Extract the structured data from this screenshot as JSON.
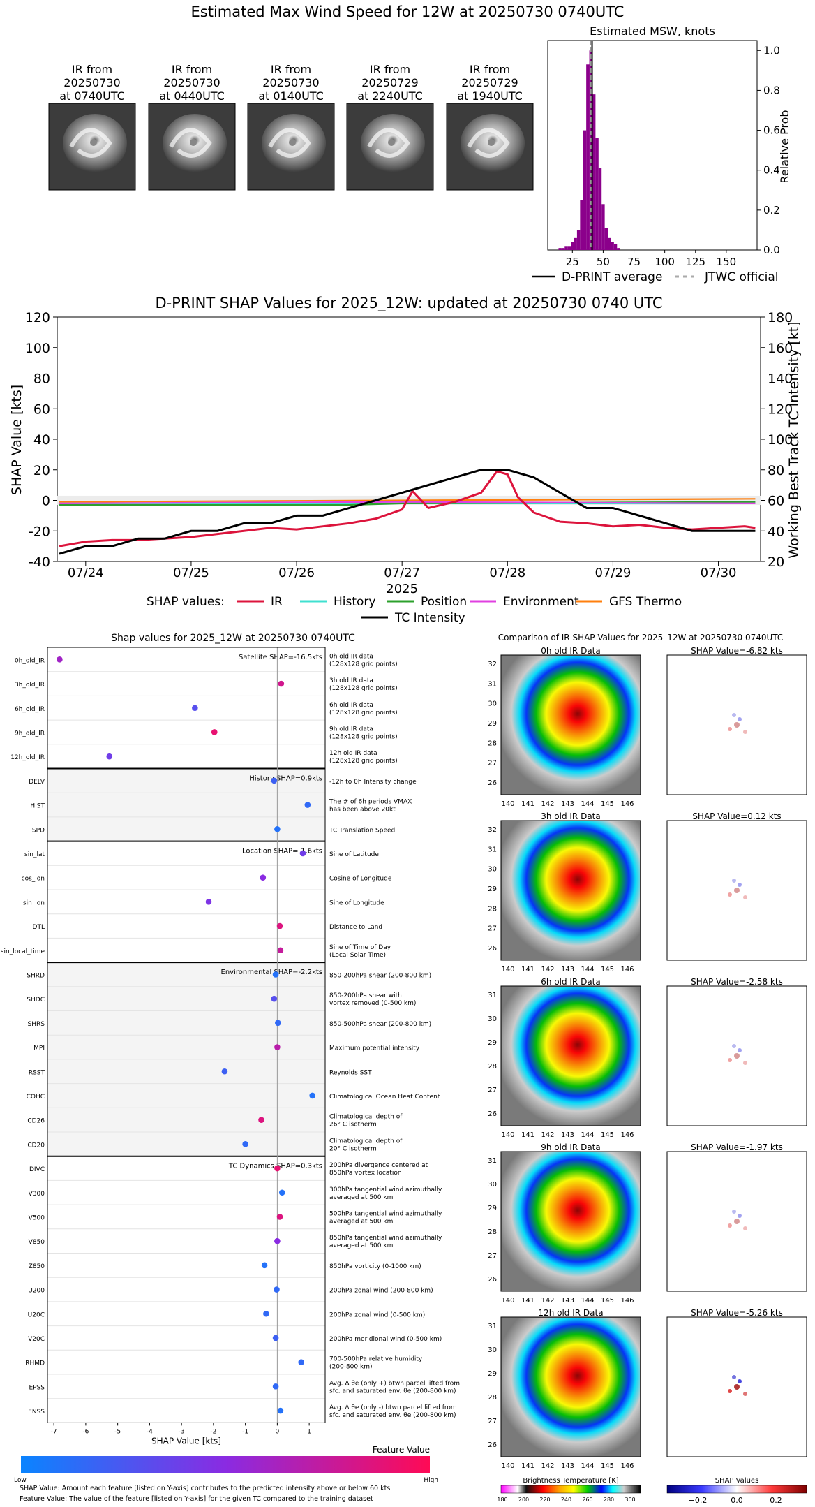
{
  "page_title": "Estimated Max Wind Speed for 12W at 20250730 0740UTC",
  "ir_thumbnails": [
    {
      "l1": "IR from",
      "l2": "20250730",
      "l3": "at 0740UTC"
    },
    {
      "l1": "IR from",
      "l2": "20250730",
      "l3": "at 0440UTC"
    },
    {
      "l1": "IR from",
      "l2": "20250730",
      "l3": "at 0140UTC"
    },
    {
      "l1": "IR from",
      "l2": "20250729",
      "l3": "at 2240UTC"
    },
    {
      "l1": "IR from",
      "l2": "20250729",
      "l3": "at 1940UTC"
    }
  ],
  "colors": {
    "ir": "#dc143c",
    "history": "#40e0d0",
    "position": "#2ca02c",
    "environment": "#e040e0",
    "gfs": "#ff7f0e",
    "intensity": "#000000",
    "histogram": "#8b008b",
    "shap_low": "#0a84ff",
    "shap_high": "#ff0a55"
  },
  "chart_data": [
    {
      "type": "bar",
      "title": "Estimated MSW, knots",
      "ylabel": "Relative Prob",
      "xlim": [
        5,
        175
      ],
      "ylim": [
        0,
        1.05
      ],
      "xticks": [
        "25",
        "50",
        "75",
        "100",
        "125",
        "150"
      ],
      "yticks": [
        "0.0",
        "0.2",
        "0.4",
        "0.6",
        "0.8",
        "1.0"
      ],
      "bin_width": 2.5,
      "bins": [
        {
          "x": 15,
          "v": 0.01
        },
        {
          "x": 17.5,
          "v": 0.01
        },
        {
          "x": 20,
          "v": 0.02
        },
        {
          "x": 22.5,
          "v": 0.02
        },
        {
          "x": 25,
          "v": 0.04
        },
        {
          "x": 27.5,
          "v": 0.06
        },
        {
          "x": 30,
          "v": 0.1
        },
        {
          "x": 32.5,
          "v": 0.25
        },
        {
          "x": 35,
          "v": 0.6
        },
        {
          "x": 37.5,
          "v": 0.93
        },
        {
          "x": 40,
          "v": 1.0
        },
        {
          "x": 42.5,
          "v": 0.78
        },
        {
          "x": 45,
          "v": 0.56
        },
        {
          "x": 47.5,
          "v": 0.41
        },
        {
          "x": 50,
          "v": 0.23
        },
        {
          "x": 52.5,
          "v": 0.11
        },
        {
          "x": 55,
          "v": 0.06
        },
        {
          "x": 57.5,
          "v": 0.04
        },
        {
          "x": 60,
          "v": 0.03
        },
        {
          "x": 62.5,
          "v": 0.01
        }
      ],
      "dprint_average": 41,
      "jtwc_official": 40,
      "legend": [
        {
          "label": "D-PRINT average"
        },
        {
          "label": "JTWC official"
        }
      ]
    },
    {
      "type": "line",
      "title": "D-PRINT SHAP Values for 2025_12W: updated at 20250730 0740 UTC",
      "xlabel": "2025",
      "ylabel": "SHAP Value [kts]",
      "ylabel_right": "Working Best Track TC Intensity [kt]",
      "xlim": [
        -0.27,
        6.4
      ],
      "ylim": [
        -40,
        120
      ],
      "ylim_right": [
        20,
        180
      ],
      "xticks": [
        "07/24",
        "07/25",
        "07/26",
        "07/27",
        "07/28",
        "07/29",
        "07/30"
      ],
      "yticks": [
        "-40",
        "-20",
        "0",
        "20",
        "40",
        "60",
        "80",
        "100",
        "120"
      ],
      "yticks_right": [
        "20",
        "40",
        "60",
        "80",
        "100",
        "120",
        "140",
        "160",
        "180"
      ],
      "legend_prefix": "SHAP values:",
      "series": [
        {
          "name": "IR",
          "values": [
            [
              -0.25,
              -30
            ],
            [
              0,
              -27
            ],
            [
              0.25,
              -26
            ],
            [
              0.5,
              -26
            ],
            [
              0.75,
              -25
            ],
            [
              1.0,
              -24
            ],
            [
              1.25,
              -22
            ],
            [
              1.5,
              -20
            ],
            [
              1.75,
              -18
            ],
            [
              2.0,
              -19
            ],
            [
              2.25,
              -17
            ],
            [
              2.5,
              -15
            ],
            [
              2.75,
              -12
            ],
            [
              3.0,
              -6
            ],
            [
              3.1,
              6
            ],
            [
              3.25,
              -5
            ],
            [
              3.5,
              -1
            ],
            [
              3.75,
              5
            ],
            [
              3.9,
              19
            ],
            [
              4.0,
              17
            ],
            [
              4.1,
              2
            ],
            [
              4.25,
              -8
            ],
            [
              4.5,
              -14
            ],
            [
              4.75,
              -15
            ],
            [
              5.0,
              -17
            ],
            [
              5.25,
              -16
            ],
            [
              5.5,
              -18
            ],
            [
              5.75,
              -19
            ],
            [
              6.0,
              -18
            ],
            [
              6.25,
              -17
            ],
            [
              6.35,
              -18
            ]
          ]
        },
        {
          "name": "History",
          "values": [
            [
              -0.25,
              -2
            ],
            [
              6.35,
              -2
            ]
          ]
        },
        {
          "name": "Position",
          "values": [
            [
              -0.25,
              -3
            ],
            [
              2.5,
              -3
            ],
            [
              3.0,
              -2
            ],
            [
              6.35,
              -1
            ]
          ]
        },
        {
          "name": "Environment",
          "values": [
            [
              -0.25,
              -2
            ],
            [
              3.0,
              -1
            ],
            [
              6.35,
              -2
            ]
          ]
        },
        {
          "name": "GFS Thermo",
          "values": [
            [
              -0.25,
              -1
            ],
            [
              6.35,
              1
            ]
          ]
        },
        {
          "name": "TC Intensity",
          "axis": "right",
          "values": [
            [
              -0.25,
              25
            ],
            [
              0,
              30
            ],
            [
              0.25,
              30
            ],
            [
              0.5,
              35
            ],
            [
              0.75,
              35
            ],
            [
              1.0,
              40
            ],
            [
              1.25,
              40
            ],
            [
              1.5,
              45
            ],
            [
              1.75,
              45
            ],
            [
              2.0,
              50
            ],
            [
              2.25,
              50
            ],
            [
              2.5,
              55
            ],
            [
              2.75,
              60
            ],
            [
              3.0,
              65
            ],
            [
              3.25,
              70
            ],
            [
              3.5,
              75
            ],
            [
              3.75,
              80
            ],
            [
              4.0,
              80
            ],
            [
              4.25,
              75
            ],
            [
              4.5,
              65
            ],
            [
              4.75,
              55
            ],
            [
              5.0,
              55
            ],
            [
              5.25,
              50
            ],
            [
              5.5,
              45
            ],
            [
              5.75,
              40
            ],
            [
              6.0,
              40
            ],
            [
              6.35,
              40
            ]
          ]
        }
      ]
    },
    {
      "type": "scatter",
      "title": "Shap values for 2025_12W at 20250730 0740UTC",
      "xlabel": "SHAP Value [kts]",
      "xlim": [
        -7.2,
        1.5
      ],
      "xticks": [
        "-7",
        "-6",
        "-5",
        "-4",
        "-3",
        "-2",
        "-1",
        "0",
        "1"
      ],
      "groups": [
        {
          "label": "Satellite SHAP=-16.5kts",
          "shaded": false,
          "features": [
            {
              "name": "0h_old_IR",
              "desc": [
                "0h old IR data",
                "(128x128 grid points)"
              ],
              "value": -6.82,
              "fv": 0.6
            },
            {
              "name": "3h_old_IR",
              "desc": [
                "3h old IR data",
                "(128x128 grid points)"
              ],
              "value": 0.12,
              "fv": 0.8
            },
            {
              "name": "6h_old_IR",
              "desc": [
                "6h old IR data",
                "(128x128 grid points)"
              ],
              "value": -2.58,
              "fv": 0.3
            },
            {
              "name": "9h_old_IR",
              "desc": [
                "9h old IR data",
                "(128x128 grid points)"
              ],
              "value": -1.97,
              "fv": 0.9
            },
            {
              "name": "12h_old_IR",
              "desc": [
                "12h old IR data",
                "(128x128 grid points)"
              ],
              "value": -5.26,
              "fv": 0.4
            }
          ]
        },
        {
          "label": "History SHAP=0.9kts",
          "shaded": true,
          "features": [
            {
              "name": "DELV",
              "desc": [
                "-12h to 0h Intensity change"
              ],
              "value": -0.1,
              "fv": 0.2
            },
            {
              "name": "HIST",
              "desc": [
                "The # of 6h periods VMAX",
                "has been above 20kt"
              ],
              "value": 0.95,
              "fv": 0.15
            },
            {
              "name": "SPD",
              "desc": [
                "TC Translation Speed"
              ],
              "value": 0.0,
              "fv": 0.1
            }
          ]
        },
        {
          "label": "Location SHAP=-1.6kts",
          "shaded": false,
          "features": [
            {
              "name": "sin_lat",
              "desc": [
                "Sine of Latitude"
              ],
              "value": 0.8,
              "fv": 0.4
            },
            {
              "name": "cos_lon",
              "desc": [
                "Cosine of Longitude"
              ],
              "value": -0.45,
              "fv": 0.5
            },
            {
              "name": "sin_lon",
              "desc": [
                "Sine of Longitude"
              ],
              "value": -2.15,
              "fv": 0.45
            },
            {
              "name": "DTL",
              "desc": [
                "Distance to Land"
              ],
              "value": 0.08,
              "fv": 0.85
            },
            {
              "name": "sin_local_time",
              "desc": [
                "Sine of Time of Day",
                "(Local Solar Time)"
              ],
              "value": 0.1,
              "fv": 0.75
            }
          ]
        },
        {
          "label": "Environmental SHAP=-2.2kts",
          "shaded": true,
          "features": [
            {
              "name": "SHRD",
              "desc": [
                "850-200hPa shear (200-800 km)"
              ],
              "value": -0.05,
              "fv": 0.1
            },
            {
              "name": "SHDC",
              "desc": [
                "850-200hPa shear with",
                "vortex removed (0-500 km)"
              ],
              "value": -0.1,
              "fv": 0.3
            },
            {
              "name": "SHRS",
              "desc": [
                "850-500hPa shear (200-800 km)"
              ],
              "value": 0.02,
              "fv": 0.15
            },
            {
              "name": "MPI",
              "desc": [
                "Maximum potential intensity"
              ],
              "value": 0.0,
              "fv": 0.7
            },
            {
              "name": "RSST",
              "desc": [
                "Reynolds SST"
              ],
              "value": -1.65,
              "fv": 0.2
            },
            {
              "name": "COHC",
              "desc": [
                "Climatological Ocean Heat Content"
              ],
              "value": 1.1,
              "fv": 0.1
            },
            {
              "name": "CD26",
              "desc": [
                "Climatological depth of",
                "26° C isotherm"
              ],
              "value": -0.5,
              "fv": 0.85
            },
            {
              "name": "CD20",
              "desc": [
                "Climatological depth of",
                "20° C isotherm"
              ],
              "value": -1.0,
              "fv": 0.15
            }
          ]
        },
        {
          "label": "TC Dynamics SHAP=0.3kts",
          "shaded": false,
          "features": [
            {
              "name": "DIVC",
              "desc": [
                "200hPa divergence centered at",
                "850hPa vortex location"
              ],
              "value": 0.0,
              "fv": 0.9
            },
            {
              "name": "V300",
              "desc": [
                "300hPa tangential wind azimuthally",
                "averaged at 500 km"
              ],
              "value": 0.15,
              "fv": 0.1
            },
            {
              "name": "V500",
              "desc": [
                "500hPa tangential wind azimuthally",
                "averaged at 500 km"
              ],
              "value": 0.08,
              "fv": 0.85
            },
            {
              "name": "V850",
              "desc": [
                "850hPa tangential wind azimuthally",
                "averaged at 500 km"
              ],
              "value": 0.0,
              "fv": 0.5
            },
            {
              "name": "Z850",
              "desc": [
                "850hPa vorticity (0-1000 km)"
              ],
              "value": -0.4,
              "fv": 0.1
            },
            {
              "name": "U200",
              "desc": [
                "200hPa zonal wind (200-800 km)"
              ],
              "value": -0.02,
              "fv": 0.15
            },
            {
              "name": "U20C",
              "desc": [
                "200hPa zonal wind (0-500 km)"
              ],
              "value": -0.35,
              "fv": 0.15
            },
            {
              "name": "V20C",
              "desc": [
                "200hPa meridional wind (0-500 km)"
              ],
              "value": -0.05,
              "fv": 0.2
            },
            {
              "name": "RHMD",
              "desc": [
                "700-500hPa relative humidity",
                "(200-800 km)"
              ],
              "value": 0.75,
              "fv": 0.15
            },
            {
              "name": "EPSS",
              "desc": [
                "Avg. Δ θe (only +) btwn parcel lifted from",
                "sfc. and saturated env. θe (200-800 km)"
              ],
              "value": -0.05,
              "fv": 0.15
            },
            {
              "name": "ENSS",
              "desc": [
                "Avg. Δ θe (only -) btwn parcel lifted from",
                "sfc. and saturated env. θe (200-800 km)"
              ],
              "value": 0.1,
              "fv": 0.1
            }
          ]
        }
      ],
      "colorbar": {
        "title": "Feature Value",
        "low": "Low",
        "high": "High"
      }
    }
  ],
  "notes": {
    "line1": "SHAP Value: Amount each feature [listed on Y-axis] contributes to the predicted intensity above or below 60 kts",
    "line2": "Feature Value: The value of the feature [listed on Y-axis] for the given TC compared to the training dataset"
  },
  "ir_comparison": {
    "title": "Comparison of IR SHAP Values for 2025_12W at 20250730 0740UTC",
    "panels": [
      {
        "ir_title": "0h old IR Data",
        "shap_title": "SHAP Value=-6.82 kts",
        "yticks": [
          "26",
          "27",
          "28",
          "29",
          "30",
          "31",
          "32"
        ],
        "xticks": [
          "140",
          "141",
          "142",
          "143",
          "144",
          "145",
          "146"
        ]
      },
      {
        "ir_title": "3h old IR Data",
        "shap_title": "SHAP Value=0.12 kts",
        "yticks": [
          "26",
          "27",
          "28",
          "29",
          "30",
          "31",
          "32"
        ],
        "xticks": [
          "140",
          "141",
          "142",
          "143",
          "144",
          "145",
          "146"
        ]
      },
      {
        "ir_title": "6h old IR Data",
        "shap_title": "SHAP Value=-2.58 kts",
        "yticks": [
          "26",
          "27",
          "28",
          "29",
          "30",
          "31"
        ],
        "xticks": [
          "140",
          "141",
          "142",
          "143",
          "144",
          "145",
          "146"
        ]
      },
      {
        "ir_title": "9h old IR Data",
        "shap_title": "SHAP Value=-1.97 kts",
        "yticks": [
          "26",
          "27",
          "28",
          "29",
          "30",
          "31"
        ],
        "xticks": [
          "140",
          "141",
          "142",
          "143",
          "144",
          "145",
          "146"
        ]
      },
      {
        "ir_title": "12h old IR Data",
        "shap_title": "SHAP Value=-5.26 kts",
        "yticks": [
          "26",
          "27",
          "28",
          "29",
          "30",
          "31"
        ],
        "xticks": [
          "140",
          "141",
          "142",
          "143",
          "144",
          "145",
          "146"
        ]
      }
    ],
    "bt_colorbar": {
      "title": "Brightness Temperature [K]",
      "ticks": [
        "180",
        "200",
        "220",
        "240",
        "260",
        "280",
        "300"
      ]
    },
    "shap_colorbar": {
      "title": "SHAP Values",
      "ticks": [
        "−0.2",
        "0.0",
        "0.2"
      ]
    }
  }
}
